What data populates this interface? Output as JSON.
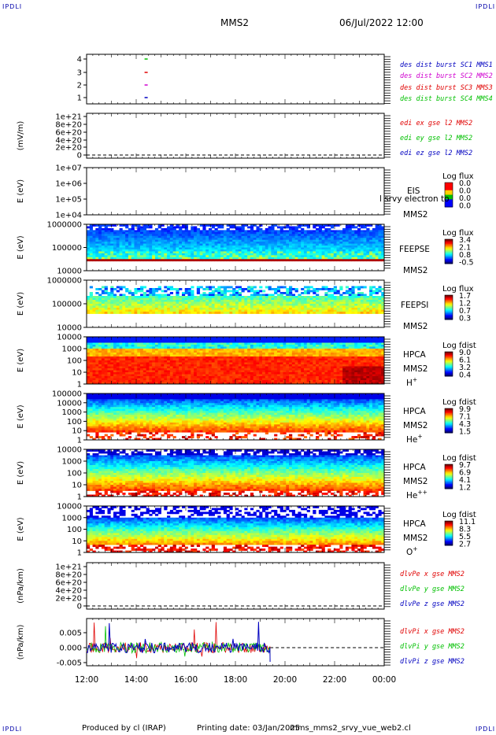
{
  "corners": {
    "tl": "IPDLI",
    "tr": "IPDLI",
    "bl": "IPDLI",
    "br": "IPDLI"
  },
  "header": {
    "spacecraft": "MMS2",
    "datetime": "06/Jul/2022 12:00"
  },
  "footer": {
    "produced_by": "Produced by cl (IRAP)",
    "printing_date": "Printing date: 03/Jan/2025",
    "script_name": "mms_mms2_srvy_vue_web2.cl"
  },
  "time_axis": {
    "ticks": [
      "12:00",
      "14:00",
      "16:00",
      "18:00",
      "20:00",
      "22:00",
      "00:00"
    ]
  },
  "colors": {
    "red": "#e00000",
    "green": "#00c000",
    "blue": "#0000c0",
    "magenta": "#d000d0"
  },
  "chart_data": [
    {
      "type": "scatter",
      "panel": "burst",
      "ylabel": "",
      "yticks": [
        "4",
        "3",
        "2",
        "1"
      ],
      "series": [
        {
          "name": "des dist burst SC1 MMS1",
          "color": "#0000c0",
          "y": 1,
          "x_hour": 14.4
        },
        {
          "name": "des dist burst SC2 MMS2",
          "color": "#d000d0",
          "y": 2,
          "x_hour": 14.4
        },
        {
          "name": "des dist burst SC3 MMS3",
          "color": "#e00000",
          "y": 3,
          "x_hour": 14.4
        },
        {
          "name": "des dist burst SC4 MMS4",
          "color": "#00c000",
          "y": 4,
          "x_hour": 14.4
        }
      ]
    },
    {
      "type": "line",
      "panel": "edi",
      "ylabel": "(mV/m)",
      "yticks": [
        "1e+21",
        "8e+20",
        "6e+20",
        "4e+20",
        "2e+20",
        "0"
      ],
      "series": [
        {
          "name": "edi ex gse l2 MMS2",
          "color": "#e00000"
        },
        {
          "name": "edi ey gse l2 MMS2",
          "color": "#00c000"
        },
        {
          "name": "edi ez gse l2 MMS2",
          "color": "#0000c0"
        }
      ]
    },
    {
      "type": "heatmap",
      "panel": "eis",
      "ylabel": "E (eV)",
      "yticks": [
        "1e+07",
        "1e+06",
        "1e+05",
        "1e+04"
      ],
      "labels": [
        "EIS",
        "MMS2"
      ],
      "overlay_text": "l srvy electron to",
      "cbar_title": "Log flux",
      "cbar_ticks": [
        "0.0",
        "0.0",
        "0.0",
        "0.0"
      ],
      "data": "empty"
    },
    {
      "type": "heatmap",
      "panel": "feepse",
      "ylabel": "E (eV)",
      "yticks": [
        "1000000",
        "100000",
        "10000"
      ],
      "labels": [
        "FEEPSE",
        "MMS2"
      ],
      "cbar_title": "Log flux",
      "cbar_ticks": [
        "3.4",
        "2.1",
        "0.8",
        "-0.5"
      ]
    },
    {
      "type": "heatmap",
      "panel": "feepsi",
      "ylabel": "E (eV)",
      "yticks": [
        "1000000",
        "100000",
        "10000"
      ],
      "labels": [
        "FEEPSI",
        "MMS2"
      ],
      "cbar_title": "Log flux",
      "cbar_ticks": [
        "1.7",
        "1.2",
        "0.7",
        "0.3"
      ]
    },
    {
      "type": "heatmap",
      "panel": "hpca_h",
      "ylabel": "E (eV)",
      "yticks": [
        "10000",
        "1000",
        "100",
        "10",
        "1"
      ],
      "labels": [
        "HPCA",
        "MMS2",
        "H"
      ],
      "species_sup": "+",
      "cbar_title": "Log fdist",
      "cbar_ticks": [
        "9.0",
        "6.1",
        "3.2",
        "0.4"
      ]
    },
    {
      "type": "heatmap",
      "panel": "hpca_he",
      "ylabel": "E (eV)",
      "yticks": [
        "100000",
        "10000",
        "1000",
        "100",
        "10",
        "1"
      ],
      "labels": [
        "HPCA",
        "MMS2",
        "He"
      ],
      "species_sup": "+",
      "cbar_title": "Log fdist",
      "cbar_ticks": [
        "9.9",
        "7.1",
        "4.3",
        "1.5"
      ]
    },
    {
      "type": "heatmap",
      "panel": "hpca_hepp",
      "ylabel": "E (eV)",
      "yticks": [
        "10000",
        "1000",
        "100",
        "10",
        "1"
      ],
      "labels": [
        "HPCA",
        "MMS2",
        "He"
      ],
      "species_sup": "++",
      "cbar_title": "Log fdist",
      "cbar_ticks": [
        "9.7",
        "6.9",
        "4.1",
        "1.2"
      ]
    },
    {
      "type": "heatmap",
      "panel": "hpca_o",
      "ylabel": "E (eV)",
      "yticks": [
        "10000",
        "1000",
        "100",
        "10",
        "1"
      ],
      "labels": [
        "HPCA",
        "MMS2",
        "O"
      ],
      "species_sup": "+",
      "cbar_title": "Log fdist",
      "cbar_ticks": [
        "11.1",
        "8.3",
        "5.5",
        "2.7"
      ]
    },
    {
      "type": "line",
      "panel": "divpe",
      "ylabel": "(nPa/km)",
      "yticks": [
        "1e+21",
        "8e+20",
        "6e+20",
        "4e+20",
        "2e+20",
        "0"
      ],
      "series": [
        {
          "name": "dlvPe x gse MMS2",
          "color": "#e00000"
        },
        {
          "name": "dlvPe y gse MMS2",
          "color": "#00c000"
        },
        {
          "name": "dlvPe z gse MMS2",
          "color": "#0000c0"
        }
      ]
    },
    {
      "type": "line",
      "panel": "divpi",
      "ylabel": "(nPa/km)",
      "yticks": [
        "0.005",
        "0.000",
        "-0.005"
      ],
      "ylim": [
        -0.008,
        0.008
      ],
      "data_end_hour": 19.4,
      "series": [
        {
          "name": "dlvPi x gse MMS2",
          "color": "#e00000"
        },
        {
          "name": "dlvPi y gse MMS2",
          "color": "#00c000"
        },
        {
          "name": "dlvPi z gse MMS2",
          "color": "#0000c0"
        }
      ]
    }
  ]
}
